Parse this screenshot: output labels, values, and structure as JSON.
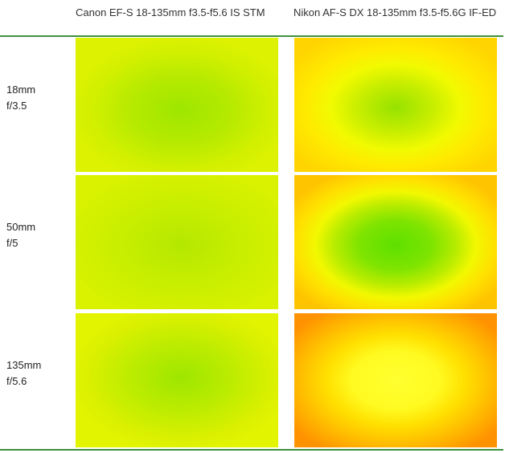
{
  "columns": [
    {
      "label": "Canon EF-S 18-135mm f3.5-f5.6 IS STM"
    },
    {
      "label": "Nikon AF-S DX 18-135mm f3.5-f5.6G IF-ED"
    }
  ],
  "rows": [
    {
      "focal": "18mm",
      "aperture": "f/3.5"
    },
    {
      "focal": "50mm",
      "aperture": "f/5"
    },
    {
      "focal": "135mm",
      "aperture": "f/5.6"
    }
  ],
  "colors": {
    "rule": "#3f8f3f",
    "canon_center": "#9ee600",
    "canon_edge": "#d6f000",
    "nikon_center_18": "#8ee000",
    "nikon_center_50": "#5ee000",
    "nikon_center_135": "#ffff20",
    "nikon_edge_18": "#ffd400",
    "nikon_edge_50": "#ffc400",
    "nikon_edge_135": "#ff9a00"
  }
}
